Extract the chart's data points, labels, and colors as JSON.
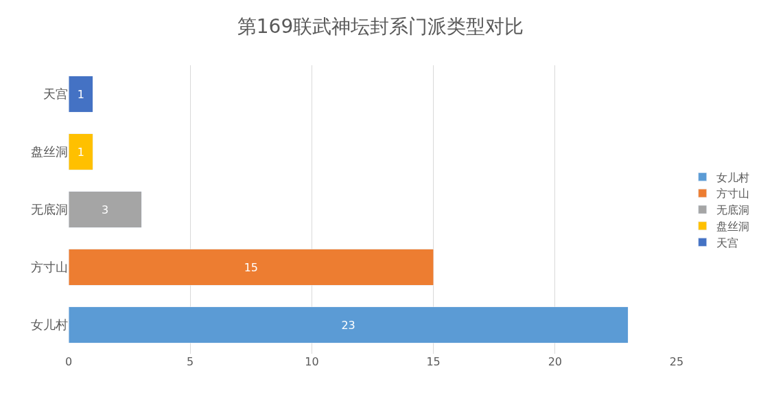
{
  "chart_data": {
    "type": "bar",
    "title": "第169联武神坛封系门派类型对比",
    "orientation": "horizontal",
    "stacked": true,
    "categories": [
      "天宫",
      "盘丝洞",
      "无底洞",
      "方寸山",
      "女儿村"
    ],
    "series": [
      {
        "name": "女儿村",
        "color": "#5b9bd5",
        "values": [
          null,
          null,
          null,
          null,
          23
        ]
      },
      {
        "name": "方寸山",
        "color": "#ed7d31",
        "values": [
          null,
          null,
          null,
          15,
          null
        ]
      },
      {
        "name": "无底洞",
        "color": "#a5a5a5",
        "values": [
          null,
          null,
          3,
          null,
          null
        ]
      },
      {
        "name": "盘丝洞",
        "color": "#ffc000",
        "values": [
          null,
          1,
          null,
          null,
          null
        ]
      },
      {
        "name": "天宫",
        "color": "#4472c4",
        "values": [
          1,
          null,
          null,
          null,
          null
        ]
      }
    ],
    "xlim": [
      0,
      25
    ],
    "xticks": [
      0,
      5,
      10,
      15,
      20,
      25
    ],
    "grid": "x",
    "legend": "right",
    "data_labels": true
  }
}
